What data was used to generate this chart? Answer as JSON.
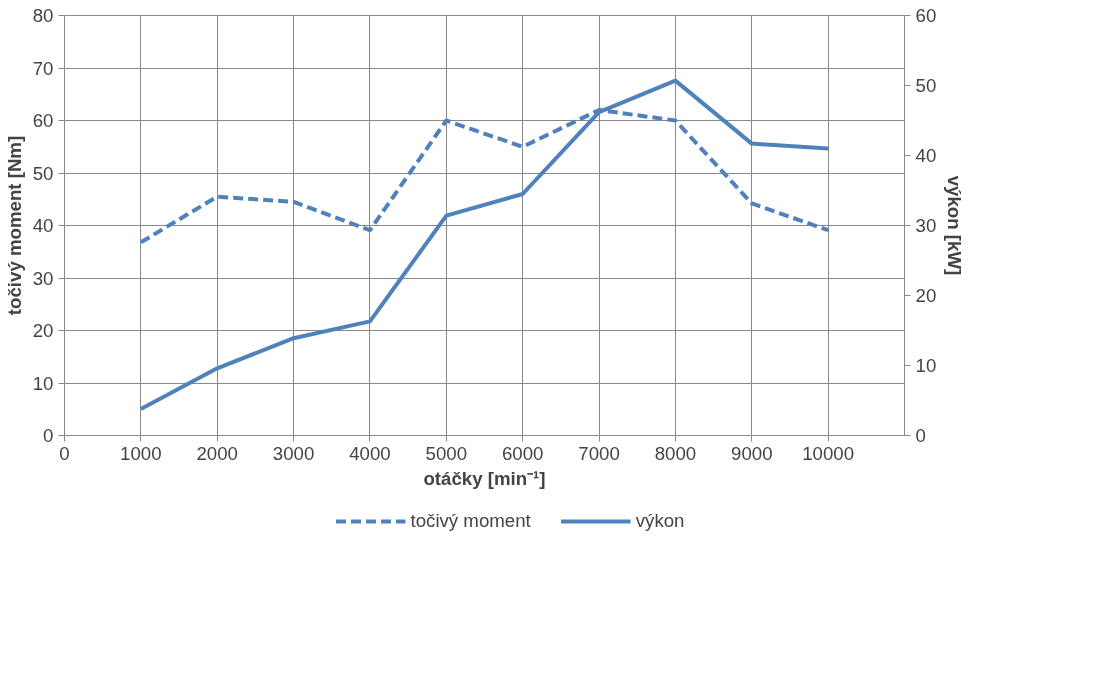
{
  "chart_data": {
    "type": "line",
    "xlabel": "otáčky [min⁻¹]",
    "ylabel": "točivý moment [Nm]",
    "y2label": "výkon [kW]",
    "x": [
      1000,
      2000,
      3000,
      4000,
      5000,
      6000,
      7000,
      8000,
      9000,
      10000
    ],
    "series": [
      {
        "name": "točivý moment",
        "color": "#4f81bd",
        "line_style": "dashed",
        "values": [
          36.8,
          45.5,
          44.5,
          39.1,
          60,
          55,
          62,
          60,
          44.2,
          39.1
        ]
      },
      {
        "name": "výkon",
        "color": "#4f81bd",
        "line_style": "solid",
        "axis": "y2",
        "values": [
          3.8,
          9.6,
          13.9,
          16.3,
          31.4,
          34.5,
          46.2,
          50.7,
          41.7,
          41
        ]
      }
    ],
    "xlim": [
      0,
      11000
    ],
    "xticks": [
      0,
      1000,
      2000,
      3000,
      4000,
      5000,
      6000,
      7000,
      8000,
      9000,
      10000
    ],
    "ylim": [
      0,
      80
    ],
    "yticks": [
      0,
      10,
      20,
      30,
      40,
      50,
      60,
      70,
      80
    ],
    "y2lim": [
      0,
      60
    ],
    "y2ticks": [
      0,
      10,
      20,
      30,
      40,
      50,
      60
    ],
    "grid": true,
    "legend": "bottom",
    "marker": "none"
  }
}
